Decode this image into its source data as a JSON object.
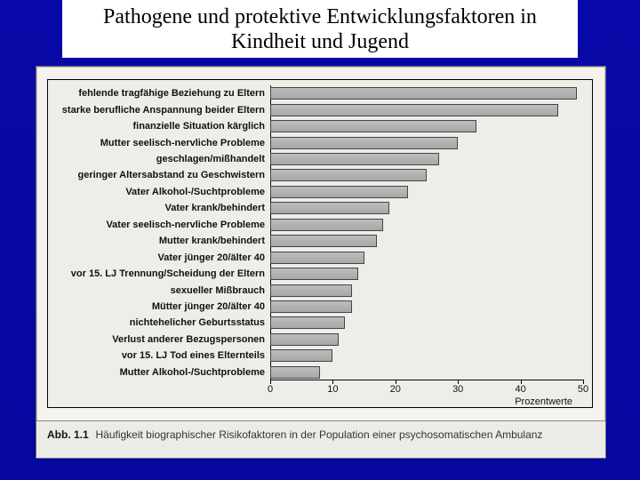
{
  "slide": {
    "title": "Pathogene und protektive Entwicklungsfaktoren in Kindheit und Jugend",
    "background_color": "#0808a8"
  },
  "chart": {
    "type": "bar-horizontal",
    "background_color": "#efede7",
    "card_background": "#f5f3ee",
    "bar_fill": "#a8a8a8",
    "bar_border": "#444444",
    "label_fontsize": 11,
    "label_fontweight": "bold",
    "xaxis": {
      "title": "Prozentwerte",
      "min": 0,
      "max": 50,
      "ticks": [
        0,
        10,
        20,
        30,
        40,
        50
      ]
    },
    "bars": [
      {
        "label": "fehlende tragfähige Beziehung zu Eltern",
        "value": 49
      },
      {
        "label": "starke berufliche Anspannung beider Eltern",
        "value": 46
      },
      {
        "label": "finanzielle Situation kärglich",
        "value": 33
      },
      {
        "label": "Mutter seelisch-nervliche Probleme",
        "value": 30
      },
      {
        "label": "geschlagen/mißhandelt",
        "value": 27
      },
      {
        "label": "geringer Altersabstand zu Geschwistern",
        "value": 25
      },
      {
        "label": "Vater Alkohol-/Suchtprobleme",
        "value": 22
      },
      {
        "label": "Vater krank/behindert",
        "value": 19
      },
      {
        "label": "Vater seelisch-nervliche Probleme",
        "value": 18
      },
      {
        "label": "Mutter krank/behindert",
        "value": 17
      },
      {
        "label": "Vater jünger 20/älter 40",
        "value": 15
      },
      {
        "label": "vor 15. LJ Trennung/Scheidung der Eltern",
        "value": 14
      },
      {
        "label": "sexueller Mißbrauch",
        "value": 13
      },
      {
        "label": "Mütter jünger 20/älter 40",
        "value": 13
      },
      {
        "label": "nichtehelicher Geburtsstatus",
        "value": 12
      },
      {
        "label": "Verlust anderer Bezugspersonen",
        "value": 11
      },
      {
        "label": "vor 15. LJ Tod eines Elternteils",
        "value": 10
      },
      {
        "label": "Mutter Alkohol-/Suchtprobleme",
        "value": 8
      }
    ]
  },
  "caption": {
    "label": "Abb. 1.1",
    "text": "Häufigkeit biographischer Risikofaktoren in der Population einer psychosomatischen Ambulanz"
  }
}
